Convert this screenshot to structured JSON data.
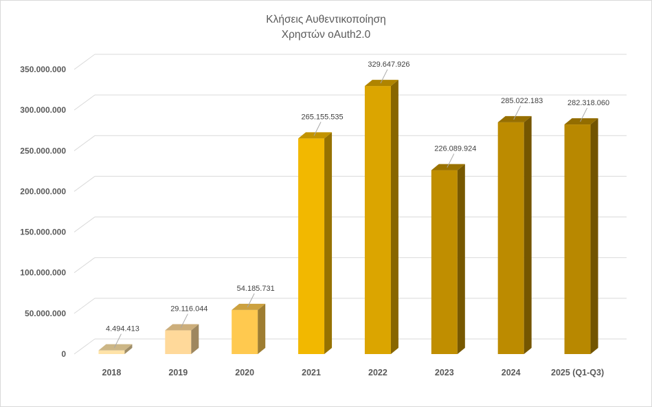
{
  "chart_data": {
    "type": "bar",
    "style": "3d-column",
    "title_lines": [
      "Κλήσεις Αυθεντικοποίηση",
      "Χρηστών oAuth2.0"
    ],
    "categories": [
      "2018",
      "2019",
      "2020",
      "2021",
      "2022",
      "2023",
      "2024",
      "2025 (Q1-Q3)"
    ],
    "values": [
      4494413,
      29116044,
      54185731,
      265155535,
      329647926,
      226089924,
      285022183,
      282318060
    ],
    "data_labels": [
      "4.494.413",
      "29.116.044",
      "54.185.731",
      "265.155.535",
      "329.647.926",
      "226.089.924",
      "285.022.183",
      "282.318.060"
    ],
    "y_ticks": [
      "0",
      "50.000.000",
      "100.000.000",
      "150.000.000",
      "200.000.000",
      "250.000.000",
      "300.000.000",
      "350.000.000"
    ],
    "ylim": [
      0,
      350000000
    ],
    "grid": true,
    "legend": "none",
    "bar_colors": [
      "#FFE3A8",
      "#FFD99A",
      "#FFC94F",
      "#F2B800",
      "#DBA500",
      "#C08E00",
      "#BC8B00",
      "#B88800"
    ]
  }
}
